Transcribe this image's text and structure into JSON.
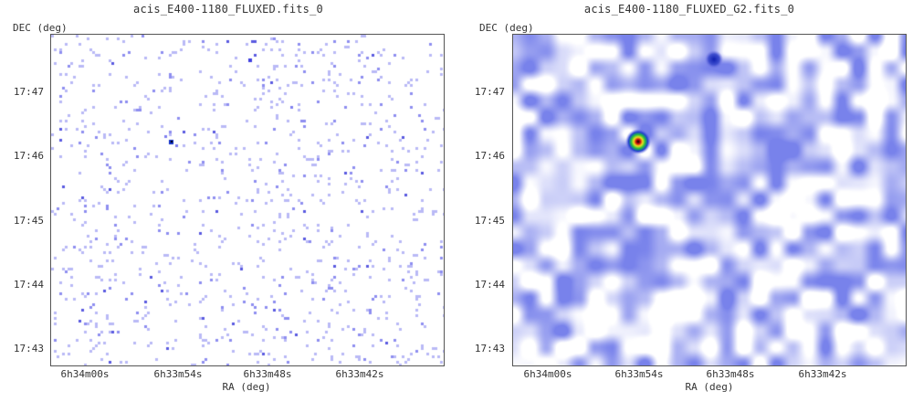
{
  "panels": [
    {
      "title": "acis_E400-1180_FLUXED.fits_0",
      "ylabel": "DEC (deg)",
      "xlabel": "RA (deg)",
      "yticks": [
        "17:47",
        "17:46",
        "17:45",
        "17:44",
        "17:43"
      ],
      "xticks": [
        "6h34m00s",
        "6h33m54s",
        "6h33m48s",
        "6h33m42s"
      ],
      "render": "sparse"
    },
    {
      "title": "acis_E400-1180_FLUXED_G2.fits_0",
      "ylabel": "DEC (deg)",
      "xlabel": "RA (deg)",
      "yticks": [
        "17:47",
        "17:46",
        "17:45",
        "17:44",
        "17:43"
      ],
      "xticks": [
        "6h34m00s",
        "6h33m54s",
        "6h33m48s",
        "6h33m42s"
      ],
      "render": "smoothed"
    }
  ],
  "colors": {
    "frame": "#555555",
    "background": "#ffffff",
    "low": "#7b7bef",
    "high": "#1a2ed0",
    "hot": "#d01010"
  }
}
